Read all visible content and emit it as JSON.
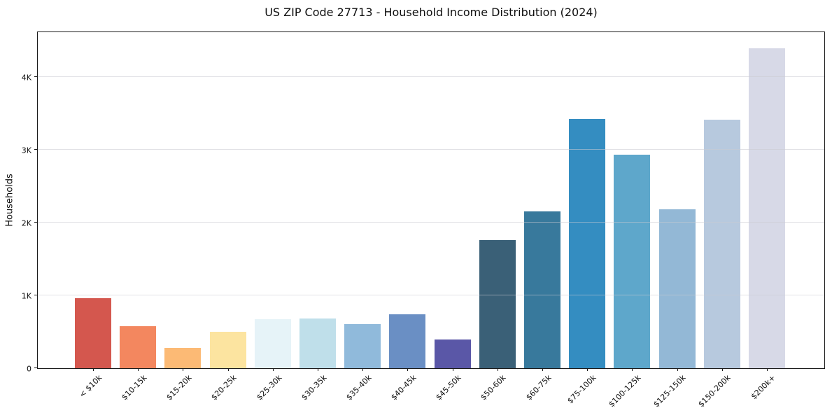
{
  "chart_data": {
    "type": "bar",
    "title": "US ZIP Code 27713 - Household Income Distribution (2024)",
    "xlabel": "",
    "ylabel": "Households",
    "ylim": [
      0,
      4620
    ],
    "grid": "horizontal-on-top",
    "legend": "none",
    "yticks": [
      {
        "value": 0,
        "label": "0"
      },
      {
        "value": 1000,
        "label": "1K"
      },
      {
        "value": 2000,
        "label": "2K"
      },
      {
        "value": 3000,
        "label": "3K"
      },
      {
        "value": 4000,
        "label": "4K"
      }
    ],
    "categories": [
      "< $10k",
      "$10-15k",
      "$15-20k",
      "$20-25k",
      "$25-30k",
      "$30-35k",
      "$35-40k",
      "$40-45k",
      "$45-50k",
      "$50-60k",
      "$60-75k",
      "$75-100k",
      "$100-125k",
      "$125-150k",
      "$150-200k",
      "$200k+"
    ],
    "values": [
      960,
      580,
      275,
      505,
      675,
      680,
      610,
      740,
      390,
      1765,
      2155,
      3425,
      2935,
      2185,
      3420,
      4400
    ],
    "bar_colors": [
      "#d4574e",
      "#f3875f",
      "#fcba75",
      "#fce4a0",
      "#e6f3f8",
      "#bfdfea",
      "#90badb",
      "#6a8fc4",
      "#5a57a7",
      "#3a6077",
      "#38799c",
      "#348dc1",
      "#5ea7cb",
      "#93b8d6",
      "#b7c9de",
      "#d7d9e7"
    ],
    "colors": {
      "spine": "#1a1a1a",
      "gridline": "#e7e7ec",
      "background": "#ffffff",
      "text": "#0f0f0f"
    }
  }
}
